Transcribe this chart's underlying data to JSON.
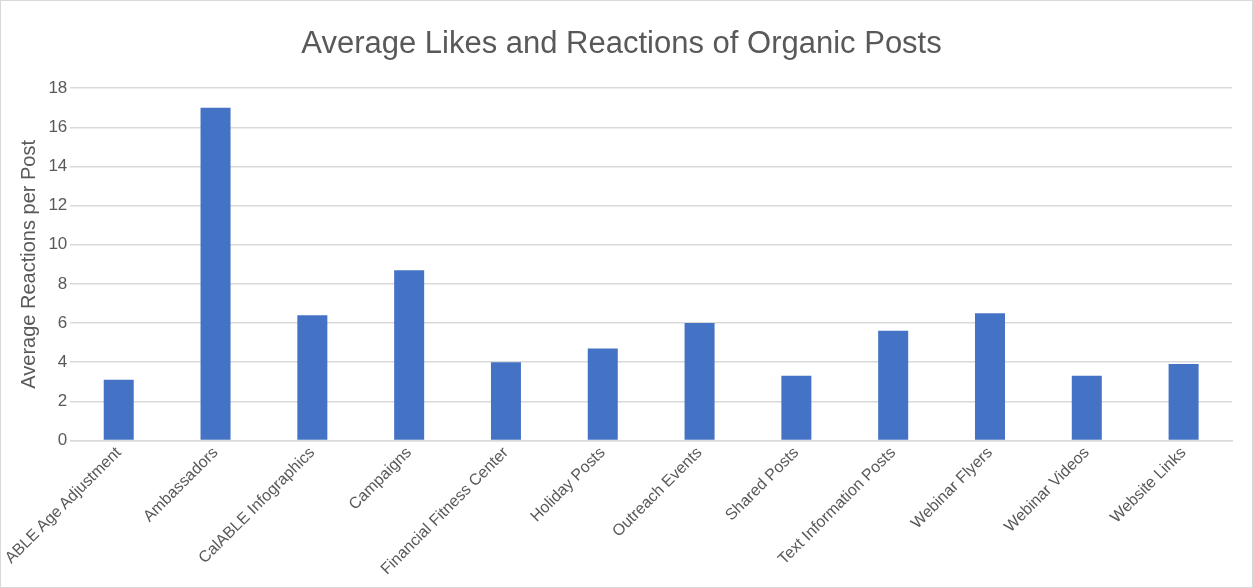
{
  "chart_data": {
    "type": "bar",
    "title": "Average Likes and Reactions of Organic Posts",
    "ylabel": "Average Reactions per Post",
    "categories": [
      "ABLE Age Adjustment",
      "Ambassadors",
      "CalABLE Infographics",
      "Campaigns",
      "Financial Fitness Center",
      "Holiday Posts",
      "Outreach Events",
      "Shared Posts",
      "Text Information Posts",
      "Webinar Flyers",
      "Webinar Videos",
      "Website Links"
    ],
    "values": [
      3.1,
      17,
      6.4,
      8.7,
      4,
      4.7,
      6,
      3.3,
      5.6,
      6.5,
      3.3,
      3.9
    ],
    "color": "#4472c4",
    "ylim": [
      0,
      18
    ],
    "yticks": [
      0,
      2,
      4,
      6,
      8,
      10,
      12,
      14,
      16,
      18
    ],
    "grid": "y",
    "legend": false
  }
}
